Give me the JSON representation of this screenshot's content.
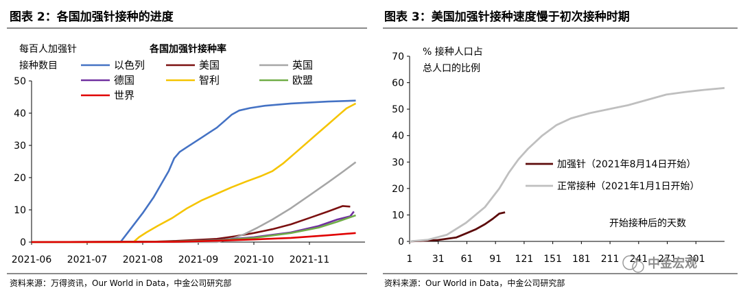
{
  "left": {
    "title": "图表 2：各国加强针接种的进度",
    "source": "资料来源：万得资讯，Our World in Data，中金公司研究部",
    "ylabel_lines": [
      "每百人加强针",
      "接种数目"
    ],
    "legend_title": "各国加强针接种率"
  },
  "right": {
    "title": "图表 3：美国加强针接种速度慢于初次接种时期",
    "source": "资料来源：Our World in Data，中金公司研究部",
    "ylabel_lines": [
      "% 接种人口占",
      "总人口的比例"
    ],
    "xlabel": "开始接种后的天数"
  },
  "watermark": "中金宏观",
  "chart_data": [
    {
      "type": "line",
      "title": "各国加强针接种率",
      "ylabel": "每百人加强针接种数目",
      "x_ticks": [
        "2021-06",
        "2021-07",
        "2021-08",
        "2021-09",
        "2021-10",
        "2021-11"
      ],
      "x_domain": [
        0,
        180
      ],
      "ylim": [
        0,
        50
      ],
      "y_ticks": [
        0,
        10,
        20,
        30,
        40,
        50
      ],
      "grid": false,
      "legend_position": "top",
      "series": [
        {
          "name": "以色列",
          "color": "#4472C4",
          "points": [
            [
              0,
              0
            ],
            [
              48,
              0
            ],
            [
              52,
              3
            ],
            [
              56,
              6
            ],
            [
              60,
              9
            ],
            [
              66,
              14
            ],
            [
              70,
              18
            ],
            [
              74,
              22
            ],
            [
              77,
              26
            ],
            [
              80,
              28
            ],
            [
              84,
              29.5
            ],
            [
              88,
              31
            ],
            [
              92,
              32.5
            ],
            [
              96,
              34
            ],
            [
              100,
              35.5
            ],
            [
              104,
              37.5
            ],
            [
              108,
              39.5
            ],
            [
              112,
              40.8
            ],
            [
              118,
              41.6
            ],
            [
              126,
              42.3
            ],
            [
              140,
              43
            ],
            [
              160,
              43.6
            ],
            [
              175,
              43.9
            ]
          ]
        },
        {
          "name": "美国",
          "color": "#7B1010",
          "points": [
            [
              0,
              0
            ],
            [
              60,
              0
            ],
            [
              80,
              0.4
            ],
            [
              100,
              1
            ],
            [
              110,
              1.8
            ],
            [
              120,
              2.8
            ],
            [
              130,
              4
            ],
            [
              140,
              5.5
            ],
            [
              150,
              7.5
            ],
            [
              160,
              9.5
            ],
            [
              168,
              11.2
            ],
            [
              172,
              11
            ]
          ]
        },
        {
          "name": "英国",
          "color": "#A6A6A6",
          "points": [
            [
              0,
              0
            ],
            [
              100,
              0
            ],
            [
              108,
              1
            ],
            [
              115,
              2.5
            ],
            [
              122,
              4.5
            ],
            [
              130,
              7
            ],
            [
              140,
              10.5
            ],
            [
              150,
              14.5
            ],
            [
              160,
              18.5
            ],
            [
              168,
              21.8
            ],
            [
              175,
              24.8
            ]
          ]
        },
        {
          "name": "德国",
          "color": "#7030A0",
          "points": [
            [
              0,
              0
            ],
            [
              80,
              0.2
            ],
            [
              100,
              0.6
            ],
            [
              120,
              1.5
            ],
            [
              140,
              3
            ],
            [
              155,
              5
            ],
            [
              165,
              7
            ],
            [
              172,
              8
            ],
            [
              174,
              9.5
            ]
          ]
        },
        {
          "name": "智利",
          "color": "#F5C400",
          "points": [
            [
              0,
              0
            ],
            [
              55,
              0
            ],
            [
              58,
              1.5
            ],
            [
              62,
              3
            ],
            [
              68,
              5
            ],
            [
              76,
              7.5
            ],
            [
              84,
              10.5
            ],
            [
              92,
              13
            ],
            [
              100,
              15
            ],
            [
              108,
              17
            ],
            [
              116,
              18.8
            ],
            [
              124,
              20.5
            ],
            [
              130,
              22
            ],
            [
              136,
              24.5
            ],
            [
              142,
              27.5
            ],
            [
              148,
              30.5
            ],
            [
              154,
              33.5
            ],
            [
              160,
              36.5
            ],
            [
              166,
              39.5
            ],
            [
              170,
              41.5
            ],
            [
              175,
              43
            ]
          ]
        },
        {
          "name": "欧盟",
          "color": "#70AD47",
          "points": [
            [
              0,
              0
            ],
            [
              80,
              0.2
            ],
            [
              100,
              0.5
            ],
            [
              120,
              1.3
            ],
            [
              140,
              2.8
            ],
            [
              155,
              4.5
            ],
            [
              165,
              6.3
            ],
            [
              175,
              8.3
            ]
          ]
        },
        {
          "name": "世界",
          "color": "#E00000",
          "points": [
            [
              0,
              0
            ],
            [
              80,
              0.1
            ],
            [
              100,
              0.4
            ],
            [
              120,
              0.8
            ],
            [
              140,
              1.3
            ],
            [
              160,
              2.1
            ],
            [
              175,
              2.8
            ]
          ]
        }
      ]
    },
    {
      "type": "line",
      "x_ticks": [
        1,
        31,
        61,
        91,
        121,
        151,
        181,
        211,
        241,
        271,
        301
      ],
      "x_domain": [
        1,
        331
      ],
      "ylim": [
        0,
        70
      ],
      "y_ticks": [
        0,
        10,
        20,
        30,
        40,
        50,
        60,
        70
      ],
      "grid": false,
      "legend_position": "center-left",
      "series": [
        {
          "name": "加强针（2021年8月14日开始）",
          "color": "#5C0A0A",
          "points": [
            [
              1,
              0
            ],
            [
              30,
              0.5
            ],
            [
              50,
              1.5
            ],
            [
              60,
              3
            ],
            [
              70,
              4.5
            ],
            [
              80,
              6.5
            ],
            [
              88,
              8.5
            ],
            [
              95,
              10.5
            ],
            [
              101,
              11
            ]
          ]
        },
        {
          "name": "正常接种（2021年1月1日开始）",
          "color": "#BFBFBF",
          "points": [
            [
              1,
              0
            ],
            [
              20,
              0.6
            ],
            [
              40,
              2.5
            ],
            [
              60,
              7
            ],
            [
              80,
              13
            ],
            [
              95,
              20
            ],
            [
              105,
              26
            ],
            [
              115,
              31
            ],
            [
              125,
              35
            ],
            [
              140,
              40
            ],
            [
              155,
              44
            ],
            [
              170,
              46.5
            ],
            [
              190,
              48.5
            ],
            [
              210,
              50
            ],
            [
              230,
              51.5
            ],
            [
              250,
              53.5
            ],
            [
              270,
              55.5
            ],
            [
              290,
              56.5
            ],
            [
              310,
              57.3
            ],
            [
              331,
              58
            ]
          ]
        }
      ]
    }
  ]
}
